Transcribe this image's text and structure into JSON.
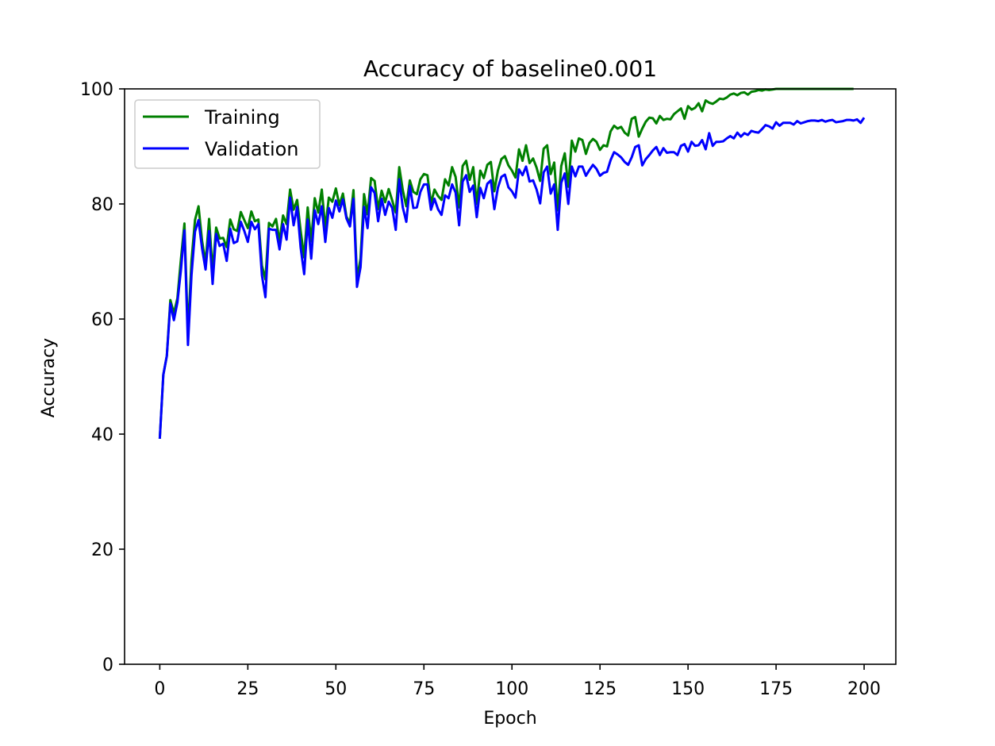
{
  "chart_data": {
    "type": "line",
    "title": "Accuracy of baseline0.001",
    "xlabel": "Epoch",
    "ylabel": "Accuracy",
    "xlim": [
      -10,
      209
    ],
    "ylim": [
      0,
      100
    ],
    "xticks": [
      0,
      25,
      50,
      75,
      100,
      125,
      150,
      175,
      200
    ],
    "yticks": [
      0,
      20,
      40,
      60,
      80,
      100
    ],
    "grid": false,
    "legend_position": "top-left",
    "x": "0..199 (one point per epoch)",
    "series": [
      {
        "name": "Training",
        "color": "#008000",
        "values": [
          39.2,
          50.3,
          53.6,
          63.3,
          61.0,
          63.6,
          70.4,
          76.6,
          57.4,
          70.1,
          77.2,
          79.6,
          73.6,
          69.7,
          77.4,
          68.2,
          75.9,
          74.0,
          74.1,
          72.5,
          77.3,
          75.6,
          75.3,
          78.6,
          77.2,
          75.8,
          78.7,
          77.0,
          77.3,
          69.3,
          66.9,
          76.7,
          76.1,
          77.4,
          73.5,
          78.0,
          76.5,
          82.5,
          79.0,
          80.7,
          75.3,
          70.7,
          79.4,
          73.5,
          81.0,
          78.5,
          82.5,
          75.7,
          81.1,
          80.4,
          82.7,
          79.8,
          81.8,
          77.8,
          76.7,
          82.4,
          67.0,
          70.5,
          81.7,
          78.2,
          84.5,
          84.0,
          79.1,
          82.3,
          80.3,
          82.6,
          80.6,
          78.5,
          86.4,
          82.4,
          79.6,
          84.1,
          82.1,
          81.7,
          84.3,
          85.2,
          85.0,
          80.1,
          82.5,
          81.4,
          80.7,
          84.3,
          83.2,
          86.4,
          84.7,
          79.4,
          86.6,
          87.5,
          84.2,
          86.4,
          80.0,
          85.8,
          84.5,
          86.8,
          87.3,
          82.2,
          85.8,
          87.8,
          88.3,
          86.7,
          85.8,
          84.6,
          89.5,
          87.5,
          90.2,
          87.1,
          87.9,
          86.3,
          84.0,
          89.6,
          90.2,
          85.2,
          87.2,
          78.9,
          86.6,
          88.8,
          83.0,
          91.0,
          89.1,
          91.4,
          91.1,
          88.7,
          90.6,
          91.3,
          90.8,
          89.4,
          90.2,
          90.0,
          92.6,
          93.6,
          93.1,
          93.4,
          92.4,
          91.9,
          94.8,
          95.1,
          91.7,
          93.1,
          94.3,
          95.0,
          94.9,
          94.0,
          95.3,
          94.6,
          94.8,
          94.7,
          95.6,
          96.1,
          96.6,
          94.8,
          97.0,
          96.4,
          96.7,
          97.5,
          96.1,
          98.0,
          97.6,
          97.4,
          97.8,
          98.3,
          98.2,
          98.5,
          99.0,
          99.2,
          98.9,
          99.3,
          99.4,
          99.0,
          99.5,
          99.6,
          99.8,
          99.7,
          99.9,
          99.8,
          99.9,
          100,
          100,
          100,
          100,
          100,
          100,
          100,
          100,
          100,
          100,
          100,
          100,
          100,
          100,
          100,
          100,
          100,
          100,
          100,
          100,
          100,
          100,
          100
        ]
      },
      {
        "name": "Validation",
        "color": "#0000ff",
        "values": [
          39.2,
          50.3,
          53.6,
          62.7,
          59.8,
          62.9,
          68.5,
          75.4,
          55.5,
          67.6,
          75.2,
          77.2,
          72.3,
          68.6,
          75.3,
          66.1,
          74.8,
          72.7,
          73.1,
          70.1,
          75.7,
          73.2,
          73.5,
          76.9,
          75.3,
          73.4,
          76.9,
          75.6,
          76.5,
          67.6,
          63.8,
          75.7,
          75.5,
          75.5,
          72.1,
          76.5,
          73.8,
          81.1,
          76.3,
          79.5,
          72.4,
          67.8,
          77.3,
          70.5,
          78.9,
          76.5,
          79.6,
          73.4,
          79.3,
          77.6,
          80.6,
          78.7,
          80.8,
          77.5,
          76.1,
          80.9,
          65.6,
          69.0,
          79.5,
          75.8,
          82.9,
          81.9,
          77.0,
          80.9,
          78.1,
          80.4,
          79.3,
          75.5,
          84.3,
          79.4,
          76.9,
          83.1,
          79.3,
          79.4,
          82.1,
          83.4,
          83.4,
          79.0,
          80.9,
          79.1,
          78.1,
          81.5,
          81.0,
          83.4,
          82.0,
          76.3,
          83.9,
          85.0,
          82.1,
          83.2,
          77.7,
          82.8,
          81.0,
          83.5,
          84.1,
          79.1,
          82.8,
          84.7,
          85.1,
          82.9,
          82.2,
          81.1,
          86.0,
          85.0,
          86.5,
          83.9,
          84.1,
          82.5,
          80.1,
          85.5,
          86.5,
          81.8,
          83.4,
          75.5,
          83.7,
          85.3,
          80.0,
          86.5,
          84.8,
          86.5,
          86.5,
          84.9,
          85.9,
          86.8,
          86.1,
          84.9,
          85.4,
          85.6,
          87.6,
          89.0,
          88.6,
          88.1,
          87.3,
          86.8,
          88.1,
          89.9,
          90.2,
          86.7,
          87.8,
          88.5,
          89.3,
          89.9,
          88.5,
          89.7,
          88.9,
          89.0,
          89.0,
          88.5,
          90.1,
          90.4,
          89.1,
          90.8,
          90.1,
          90.2,
          91.1,
          89.5,
          92.3,
          90.1,
          90.8,
          90.8,
          90.9,
          91.4,
          91.8,
          91.4,
          92.4,
          91.7,
          92.3,
          92.0,
          92.7,
          92.5,
          92.4,
          93.0,
          93.7,
          93.5,
          93.1,
          94.2,
          93.6,
          94.1,
          94.1,
          94.1,
          93.8,
          94.4,
          94.0,
          94.2,
          94.4,
          94.5,
          94.5,
          94.4,
          94.6,
          94.3,
          94.5,
          94.6,
          94.2,
          94.3,
          94.4,
          94.6,
          94.6,
          94.5,
          94.7,
          94.1,
          95.0
        ]
      }
    ]
  }
}
